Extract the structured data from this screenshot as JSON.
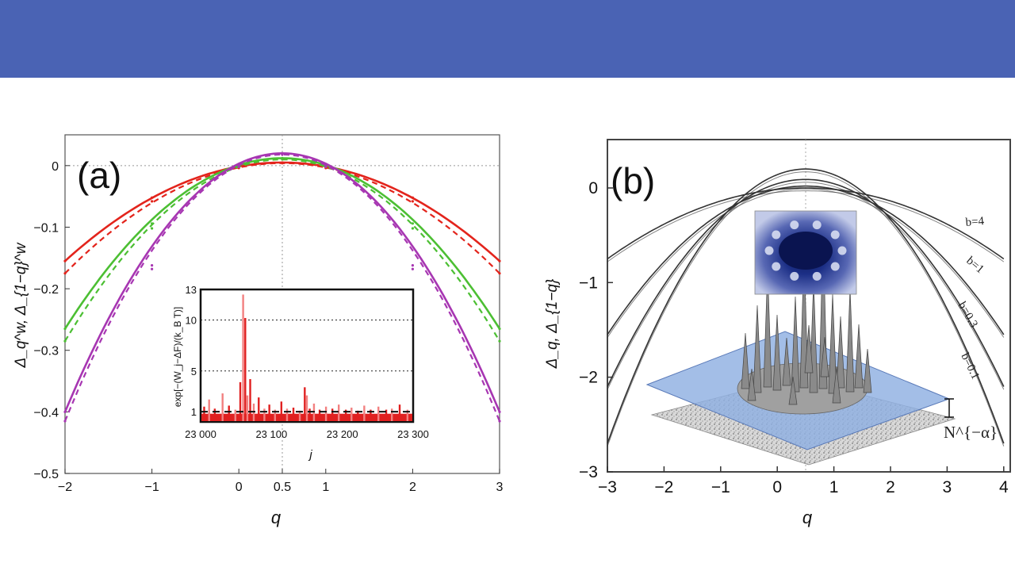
{
  "chart_data": [
    {
      "type": "line",
      "panel_label": "(a)",
      "xlabel": "q",
      "ylabel": "Δ_q^w, Δ_{1−q}^w",
      "xlim": [
        -2,
        3
      ],
      "ylim": [
        -0.5,
        0.05
      ],
      "x_ticks": [
        "−2",
        "−1",
        "0",
        "0.5",
        "1",
        "2",
        "3"
      ],
      "y_ticks": [
        "0",
        "−0.1",
        "−0.2",
        "−0.3",
        "−0.4",
        "−0.5"
      ],
      "series": [
        {
          "color": "#e3241c",
          "x": [
            -2,
            -1,
            0,
            0.5,
            1,
            2,
            3
          ],
          "values": [
            -0.155,
            -0.052,
            -0.002,
            0.005,
            -0.002,
            -0.052,
            -0.155
          ]
        },
        {
          "color": "#e3241c",
          "dashed": true,
          "x": [
            -2,
            -1,
            0,
            0.5,
            1,
            2,
            3
          ],
          "values": [
            -0.175,
            -0.058,
            -0.004,
            0.004,
            -0.004,
            -0.058,
            -0.175
          ]
        },
        {
          "color": "#4cbf33",
          "x": [
            -2,
            -1,
            0,
            0.5,
            1,
            2,
            3
          ],
          "values": [
            -0.265,
            -0.094,
            0.0,
            0.012,
            0.0,
            -0.094,
            -0.265
          ]
        },
        {
          "color": "#4cbf33",
          "dashed": true,
          "x": [
            -2,
            -1,
            0,
            0.5,
            1,
            2,
            3
          ],
          "values": [
            -0.285,
            -0.102,
            -0.002,
            0.01,
            -0.002,
            -0.102,
            -0.285
          ]
        },
        {
          "color": "#a736b2",
          "x": [
            -2,
            -1,
            0,
            0.5,
            1,
            2,
            3
          ],
          "values": [
            -0.4,
            -0.162,
            0.0,
            0.02,
            0.0,
            -0.162,
            -0.4
          ]
        },
        {
          "color": "#a736b2",
          "dashed": true,
          "x": [
            -2,
            -1,
            0,
            0.5,
            1,
            2,
            3
          ],
          "values": [
            -0.415,
            -0.168,
            -0.002,
            0.018,
            -0.002,
            -0.168,
            -0.415
          ]
        }
      ],
      "inset": {
        "type": "bar",
        "xlabel": "j",
        "ylabel": "exp[−(W_j−ΔF)/(k_B T)]",
        "xlim": [
          23000,
          23300
        ],
        "ylim": [
          0,
          13
        ],
        "x_ticks": [
          "23 000",
          "23 100",
          "23 200",
          "23 300"
        ],
        "y_ticks": [
          "1",
          "5",
          "10",
          "13"
        ],
        "reference_line": 1,
        "x": [
          23005,
          23012,
          23020,
          23031,
          23040,
          23049,
          23056,
          23060,
          23063,
          23066,
          23070,
          23075,
          23082,
          23090,
          23097,
          23105,
          23114,
          23122,
          23131,
          23140,
          23147,
          23150,
          23154,
          23160,
          23168,
          23177,
          23186,
          23195,
          23205,
          23213,
          23222,
          23231,
          23240,
          23251,
          23262,
          23270,
          23281,
          23292
        ],
        "values": [
          1.5,
          2.2,
          1.3,
          2.8,
          1.6,
          1.2,
          3.9,
          12.5,
          10.2,
          2.6,
          4.2,
          1.8,
          2.4,
          1.3,
          1.7,
          1.2,
          2.0,
          1.3,
          1.4,
          1.1,
          3.4,
          2.6,
          1.3,
          1.8,
          1.2,
          1.5,
          1.3,
          1.7,
          1.2,
          1.4,
          1.1,
          1.6,
          1.2,
          1.5,
          1.2,
          1.3,
          1.7,
          1.2
        ]
      }
    },
    {
      "type": "line",
      "panel_label": "(b)",
      "xlabel": "q",
      "ylabel": "Δ_q, Δ_{1−q}",
      "xlim": [
        -3,
        4
      ],
      "ylim": [
        -3,
        0.45
      ],
      "x_ticks": [
        "−3",
        "−2",
        "−1",
        "0",
        "1",
        "2",
        "3",
        "4"
      ],
      "y_ticks": [
        "0",
        "−1",
        "−2",
        "−3"
      ],
      "curve_labels": [
        "b=4",
        "b=1",
        "b=0.3",
        "b=0.1"
      ],
      "series": [
        {
          "name": "b=4",
          "color": "#333333",
          "x": [
            -3,
            -2,
            -1,
            0,
            0.5,
            1,
            2,
            3,
            4
          ],
          "values": [
            -0.75,
            -0.37,
            -0.12,
            -0.01,
            0.0,
            -0.01,
            -0.12,
            -0.37,
            -0.75
          ]
        },
        {
          "name": "b=1",
          "color": "#333333",
          "x": [
            -3,
            -2,
            -1,
            0,
            0.5,
            1,
            2,
            3,
            4
          ],
          "values": [
            -1.55,
            -0.82,
            -0.3,
            -0.02,
            0.02,
            -0.02,
            -0.3,
            -0.82,
            -1.55
          ]
        },
        {
          "name": "b=0.3",
          "color": "#333333",
          "x": [
            -3,
            -2,
            -1,
            0,
            0.5,
            1,
            2,
            3,
            4
          ],
          "values": [
            -2.1,
            -1.3,
            -0.58,
            -0.03,
            0.09,
            -0.03,
            -0.58,
            -1.3,
            -2.1
          ]
        },
        {
          "name": "b=0.1",
          "color": "#333333",
          "x": [
            -3,
            -2,
            -1,
            0,
            0.5,
            1,
            2,
            3,
            4
          ],
          "values": [
            -2.7,
            -1.8,
            -0.88,
            -0.05,
            0.2,
            -0.05,
            -0.88,
            -1.8,
            -2.7
          ]
        }
      ],
      "annotation": "N^{−α}"
    }
  ],
  "colors": {
    "banner": "#4a63b4",
    "plane": "#8fb0e2",
    "wavefunction": "#1a2a7a"
  }
}
